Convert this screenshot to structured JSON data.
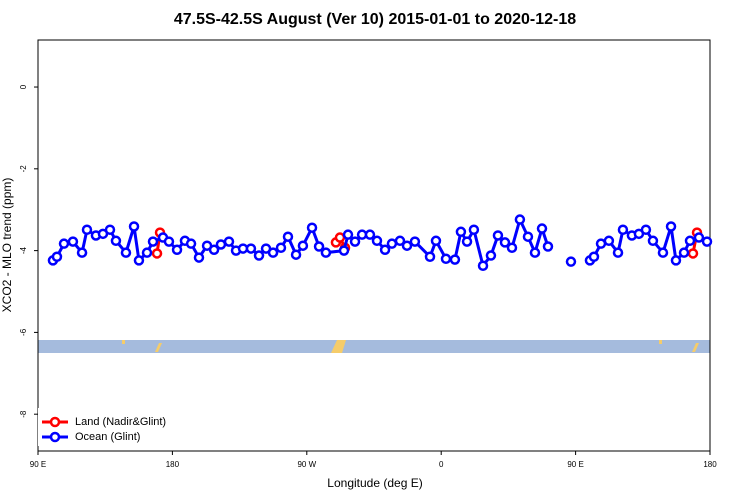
{
  "chart_data": {
    "type": "line",
    "title": "47.5S-42.5S August (Ver 10)   2015-01-01 to 2020-12-18",
    "x_label": "Longitude (deg E)",
    "y_label": "XCO2 - MLO trend (ppm)",
    "xlim": [
      90,
      540
    ],
    "xticks": [
      {
        "value": 90,
        "label": "90 E"
      },
      180,
      {
        "value": 270,
        "label": "90 W"
      },
      {
        "value": 360,
        "label": "0"
      },
      {
        "value": 450,
        "label": "90 E"
      },
      {
        "value": 540,
        "label": "180"
      }
    ],
    "ylim": [
      -8.9,
      1.15
    ],
    "yticks": [
      0,
      -2,
      -4,
      -6,
      -8
    ],
    "legend": "bottom-left",
    "series": [
      {
        "name": "Land (Nadir&Glint)",
        "color": "#ff0000",
        "x": [
          169.7,
          171.7,
          null,
          289.5,
          292.2,
          295.6,
          null,
          528.6,
          531.3
        ],
        "values": [
          -4.07,
          -3.56,
          null,
          -3.8,
          -3.68,
          -3.93,
          null,
          -4.07,
          -3.56
        ]
      },
      {
        "name": "Ocean (Glint)",
        "color": "#0000ff",
        "x": [
          100.0,
          102.7,
          107.4,
          113.4,
          119.5,
          122.8,
          128.8,
          133.5,
          138.2,
          142.2,
          148.9,
          154.3,
          157.6,
          163.0,
          167.0,
          173.7,
          177.7,
          183.1,
          188.4,
          192.5,
          197.8,
          203.2,
          207.9,
          212.5,
          217.9,
          222.6,
          227.3,
          232.6,
          238.0,
          242.7,
          247.4,
          252.7,
          257.4,
          262.8,
          267.4,
          273.5,
          278.2,
          282.8,
          294.9,
          297.6,
          302.3,
          307.0,
          312.3,
          317.0,
          322.4,
          327.0,
          332.4,
          337.1,
          342.4,
          352.5,
          356.5,
          363.2,
          369.2,
          373.2,
          377.3,
          381.9,
          388.0,
          393.3,
          398.0,
          402.7,
          407.4,
          412.7,
          418.1,
          422.8,
          427.5,
          431.5,
          null,
          446.9,
          null,
          459.6,
          462.3,
          467.0,
          472.3,
          478.4,
          481.7,
          487.7,
          492.4,
          497.1,
          501.8,
          508.5,
          513.9,
          517.2,
          522.6,
          526.6,
          532.6,
          538.0
        ],
        "values": [
          -4.24,
          -4.15,
          -3.83,
          -3.78,
          -4.05,
          -3.49,
          -3.63,
          -3.59,
          -3.49,
          -3.76,
          -4.05,
          -3.41,
          -4.24,
          -4.05,
          -3.78,
          -3.68,
          -3.78,
          -3.98,
          -3.76,
          -3.83,
          -4.17,
          -3.88,
          -3.98,
          -3.85,
          -3.78,
          -4.0,
          -3.95,
          -3.95,
          -4.12,
          -3.95,
          -4.05,
          -3.93,
          -3.66,
          -4.1,
          -3.88,
          -3.44,
          -3.9,
          -4.05,
          -4.0,
          -3.61,
          -3.78,
          -3.61,
          -3.61,
          -3.76,
          -3.98,
          -3.83,
          -3.76,
          -3.88,
          -3.78,
          -4.15,
          -3.76,
          -4.2,
          -4.22,
          -3.54,
          -3.78,
          -3.49,
          -4.37,
          -4.12,
          -3.63,
          -3.8,
          -3.93,
          -3.24,
          -3.66,
          -4.05,
          -3.46,
          -3.9,
          null,
          -4.27,
          null,
          -4.24,
          -4.15,
          -3.83,
          -3.76,
          -4.05,
          -3.49,
          -3.63,
          -3.59,
          -3.49,
          -3.76,
          -4.05,
          -3.41,
          -4.24,
          -4.05,
          -3.76,
          -3.68,
          -3.78
        ]
      }
    ]
  }
}
